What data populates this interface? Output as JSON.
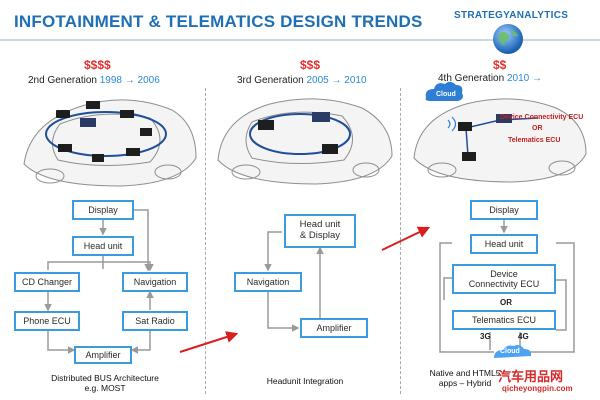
{
  "title": "INFOTAINMENT & TELEMATICS DESIGN TRENDS",
  "logo": "STRATEGYANALYTICS",
  "generations": [
    {
      "price": "$$$$",
      "label": "2nd Generation",
      "years": "1998 → 2006",
      "boxes": [
        "Display",
        "Head unit",
        "CD Changer",
        "Navigation",
        "Phone ECU",
        "Sat Radio",
        "Amplifier"
      ],
      "caption_line1": "Distributed BUS Architecture",
      "caption_line2": "e.g. MOST"
    },
    {
      "price": "$$$",
      "label": "3rd Generation",
      "years": "2005 → 2010",
      "boxes": [
        "Head unit\n& Display",
        "Navigation",
        "Amplifier"
      ],
      "caption_line1": "Headunit Integration"
    },
    {
      "price": "$$",
      "label": "4th Generation",
      "years": "2010 →",
      "boxes": [
        "Display",
        "Head unit",
        "Device\nConnectivity ECU",
        "Telematics ECU"
      ],
      "or_text": "OR",
      "net_3g": "3G",
      "net_4g": "4G",
      "cloud": "Cloud",
      "car_cloud": "Cloud",
      "car_label_1": "Device Connectivity ECU",
      "car_label_or": "OR",
      "car_label_2": "Telematics ECU",
      "caption_line1": "Native and HTML5",
      "caption_line2": "apps – Hybrid"
    }
  ],
  "watermark": "汽车用品网",
  "watermark_url": "qicheyongpin.com"
}
